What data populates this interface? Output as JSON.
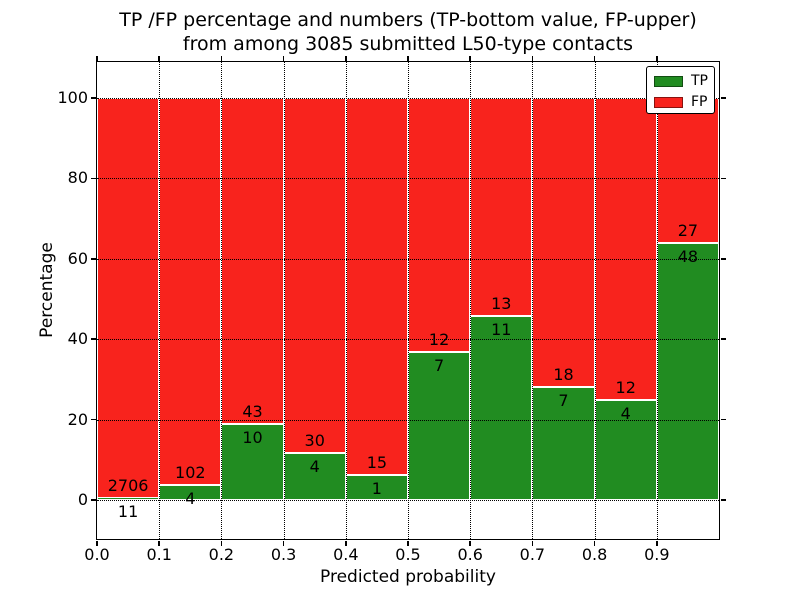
{
  "title": {
    "line1": "TP /FP percentage and numbers (TP-bottom value, FP-upper)",
    "line2": "from among 3085 submitted L50-type contacts"
  },
  "axes": {
    "xlabel": "Predicted probability",
    "ylabel": "Percentage",
    "xtick_labels": [
      "0.0",
      "0.1",
      "0.2",
      "0.3",
      "0.4",
      "0.5",
      "0.6",
      "0.7",
      "0.8",
      "0.9"
    ],
    "ytick_labels": [
      "0",
      "20",
      "40",
      "60",
      "80",
      "100"
    ],
    "ytick_values": [
      0,
      20,
      40,
      60,
      80,
      100
    ]
  },
  "legend": {
    "position": "upper-right",
    "items": [
      {
        "label": "TP",
        "color": "#218c21"
      },
      {
        "label": "FP",
        "color": "#f8231d"
      }
    ]
  },
  "chart_data": {
    "type": "bar",
    "stacked": true,
    "normalized": "each 0.1 bin scaled to 100%",
    "title": "TP /FP percentage and numbers (TP-bottom value, FP-upper) from among 3085 submitted L50-type contacts",
    "xlabel": "Predicted probability",
    "ylabel": "Percentage",
    "bins": [
      0.0,
      0.1,
      0.2,
      0.3,
      0.4,
      0.5,
      0.6,
      0.7,
      0.8,
      0.9
    ],
    "bin_width": 0.1,
    "series": [
      {
        "name": "TP",
        "color": "#218c21",
        "counts": [
          11,
          4,
          10,
          4,
          1,
          7,
          11,
          7,
          4,
          48
        ]
      },
      {
        "name": "FP",
        "color": "#f8231d",
        "counts": [
          2706,
          102,
          43,
          30,
          15,
          12,
          13,
          18,
          12,
          27
        ]
      }
    ],
    "tp_percent_of_bin": [
      0.4,
      3.8,
      18.9,
      11.8,
      6.2,
      36.8,
      45.8,
      28.0,
      25.0,
      64.0
    ],
    "total_contacts": 3085,
    "xlim": [
      0,
      1
    ],
    "ylim": [
      -11,
      110
    ],
    "grid": "dotted, both axes",
    "legend_position": "upper right",
    "annotation_rule": "TP count below segment boundary, FP count above boundary"
  }
}
